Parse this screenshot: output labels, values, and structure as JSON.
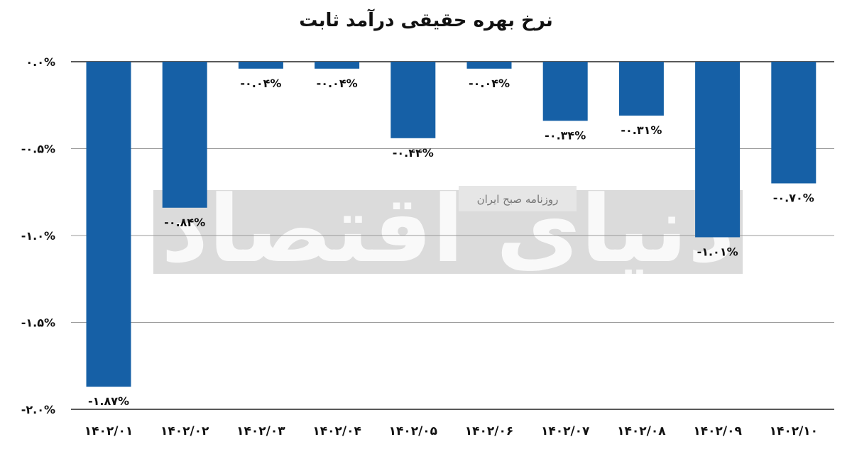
{
  "chart_data": {
    "type": "bar",
    "title": "نرخ بهره حقیقی درآمد ثابت",
    "categories": [
      "۱۴۰۲/۰۱",
      "۱۴۰۲/۰۲",
      "۱۴۰۲/۰۳",
      "۱۴۰۲/۰۴",
      "۱۴۰۲/۰۵",
      "۱۴۰۲/۰۶",
      "۱۴۰۲/۰۷",
      "۱۴۰۲/۰۸",
      "۱۴۰۲/۰۹",
      "۱۴۰۲/۱۰"
    ],
    "values": [
      -1.87,
      -0.84,
      -0.04,
      -0.04,
      -0.44,
      -0.04,
      -0.34,
      -0.31,
      -1.01,
      -0.7
    ],
    "value_labels": [
      "-۱.۸۷%",
      "-۰.۸۴%",
      "-۰.۰۴%",
      "-۰.۰۴%",
      "-۰.۴۴%",
      "-۰.۰۴%",
      "-۰.۳۴%",
      "-۰.۳۱%",
      "-۱.۰۱%",
      "-۰.۷۰%"
    ],
    "y_ticks": [
      0,
      -0.5,
      -1.0,
      -1.5,
      -2.0
    ],
    "y_tick_labels": [
      "۰.۰%",
      "-۰.۵%",
      "-۱.۰%",
      "-۱.۵%",
      "-۲.۰%"
    ],
    "ylim": [
      -2.0,
      0
    ],
    "xlabel": "",
    "ylabel": "",
    "grid": true,
    "bar_color": "#1660a6",
    "grid_color": "#9a9a9a"
  },
  "watermark": {
    "logo_text": "دنیای اقتصاد",
    "tagline": "روزنامه صبح ایران"
  }
}
